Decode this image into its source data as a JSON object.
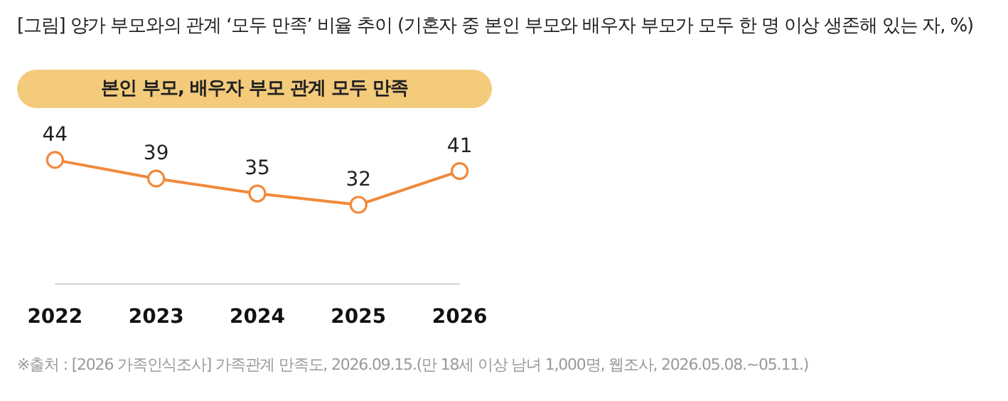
{
  "chart_data": {
    "type": "line",
    "title": "[그림] 양가 부모와의 관계 ‘모두 만족’ 비율 추이 (기혼자 중 본인 부모와 배우자 부모가 모두 한 명 이상 생존해 있는 자, %)",
    "categories": [
      "2022",
      "2023",
      "2024",
      "2025",
      "2026"
    ],
    "series": [
      {
        "name": "본인 부모, 배우자 부모 관계 모두 만족",
        "color": "#f08a3c",
        "values": [
          44,
          39,
          35,
          32,
          41
        ]
      }
    ],
    "data_labels": true,
    "marker": "circle",
    "legend": "top left",
    "grid": false,
    "annotations": [
      "※출처 : [2026 가족인식조사] 가족관계 만족도, 2026.09.15.(만 18세 이상 남녀 1,000명, 웹조사, 2026.05.08.~05.11.)"
    ]
  }
}
